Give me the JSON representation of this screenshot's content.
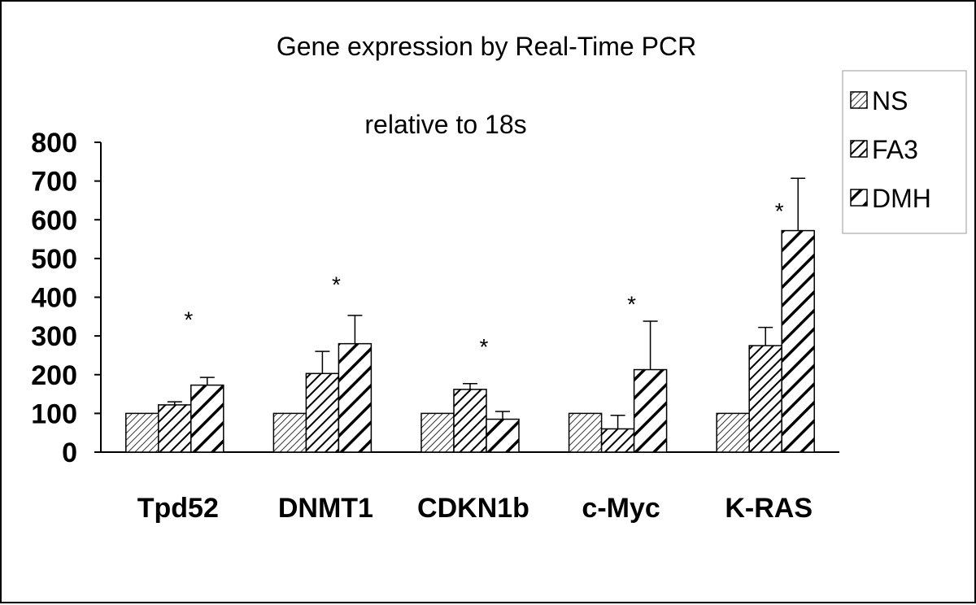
{
  "chart_data": {
    "type": "bar",
    "title": "Gene expression by Real-Time PCR",
    "subtitle": "relative to 18s",
    "categories": [
      "Tpd52",
      "DNMT1",
      "CDKN1b",
      "c-Myc",
      "K-RAS"
    ],
    "series": [
      {
        "name": "NS",
        "pattern": "fine-hatch",
        "values": [
          100,
          100,
          100,
          100,
          100
        ],
        "errors": [
          0,
          0,
          0,
          0,
          0
        ]
      },
      {
        "name": "FA3",
        "pattern": "medium-hatch",
        "values": [
          122,
          203,
          162,
          60,
          275
        ],
        "errors": [
          8,
          57,
          15,
          35,
          47
        ]
      },
      {
        "name": "DMH",
        "pattern": "wide-hatch",
        "values": [
          173,
          280,
          85,
          213,
          572
        ],
        "errors": [
          20,
          73,
          20,
          125,
          135
        ]
      }
    ],
    "annotations": [
      {
        "category": "Tpd52",
        "text": "*",
        "y": 360
      },
      {
        "category": "DNMT1",
        "text": "*",
        "y": 450
      },
      {
        "category": "CDKN1b",
        "text": "*",
        "y": 290
      },
      {
        "category": "c-Myc",
        "text": "*",
        "y": 400
      },
      {
        "category": "K-RAS",
        "text": "*",
        "y": 640
      }
    ],
    "yticks": [
      "0",
      "100",
      "200",
      "300",
      "400",
      "500",
      "600",
      "700",
      "800"
    ],
    "ylim": [
      0,
      800
    ],
    "xlabel": "",
    "ylabel": "",
    "legend_position": "top-right",
    "grid": false
  }
}
